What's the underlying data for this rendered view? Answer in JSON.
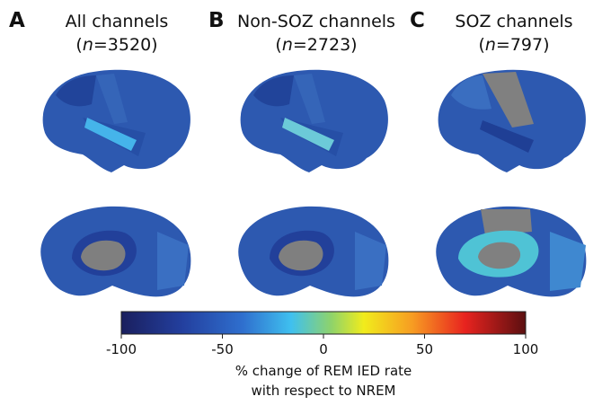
{
  "panels": [
    {
      "letter": "A",
      "title": "All channels",
      "n_open": "(",
      "n_var": "n",
      "n_rest": "=3520)"
    },
    {
      "letter": "B",
      "title": "Non-SOZ channels",
      "n_open": "(",
      "n_var": "n",
      "n_rest": "=2723)"
    },
    {
      "letter": "C",
      "title": "SOZ channels",
      "n_open": "(",
      "n_var": "n",
      "n_rest": "=797)"
    }
  ],
  "colorbar": {
    "range": [
      -100,
      100
    ],
    "ticks": [
      -100,
      -50,
      0,
      50,
      100
    ],
    "label_line1": "% change of REM IED rate",
    "label_line2": "with respect to NREM"
  }
}
